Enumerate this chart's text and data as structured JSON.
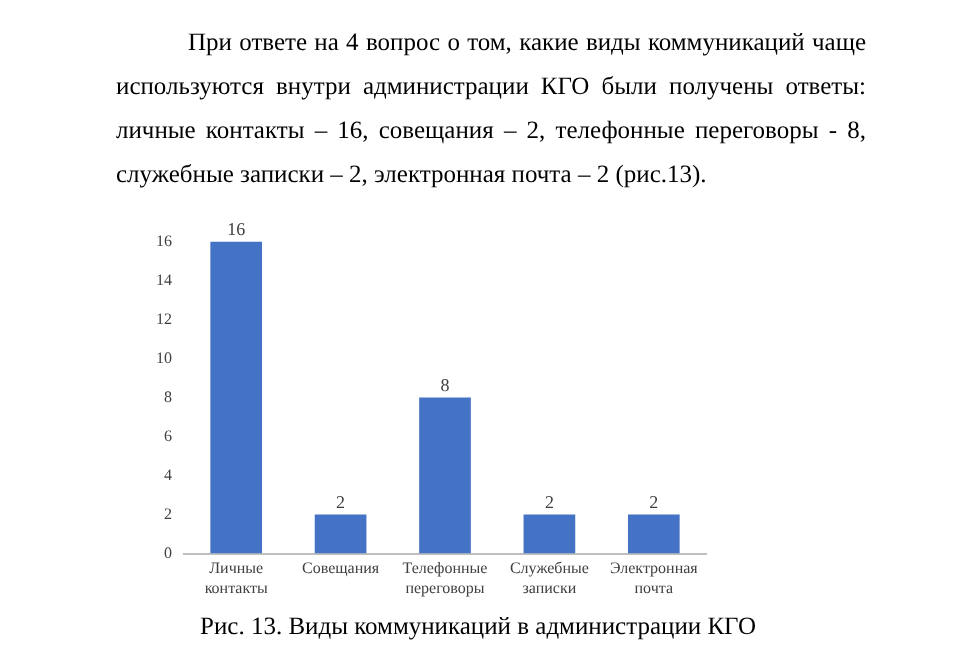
{
  "chart_data": {
    "type": "bar",
    "title": "Рис. 13. Виды коммуникаций в администрации КГО",
    "annotations": [
      "При ответе на 4 вопрос о том, какие виды коммуникаций чаще используются внутри администрации КГО были получены ответы: личные контакты – 16, совещания – 2, телефонные переговоры - 8, служебные записки – 2, электронная почта – 2 (рис.13)."
    ],
    "categories": [
      "Личные контакты",
      "Совещания",
      "Телефонные переговоры",
      "Служебные записки",
      "Электронная почта"
    ],
    "values": [
      16,
      2,
      8,
      2,
      2
    ],
    "color": "#4472c4",
    "ylim": [
      0,
      16
    ],
    "yticks": [
      0,
      2,
      4,
      6,
      8,
      10,
      12,
      14,
      16
    ],
    "grid": false,
    "legend": false,
    "data_labels": true
  }
}
